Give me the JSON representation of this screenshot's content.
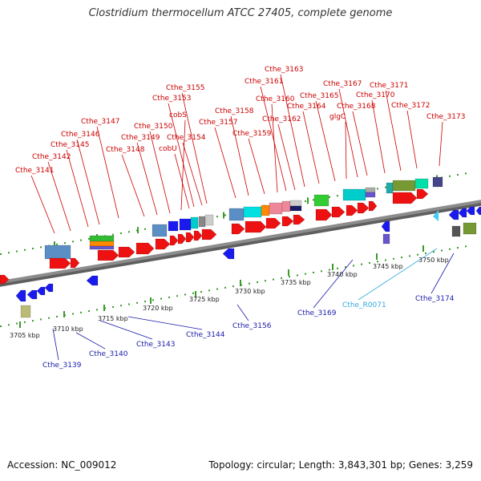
{
  "title": "Clostridium thermocellum ATCC 27405, complete genome",
  "footer": {
    "accession": "Accession: NC_009012",
    "info": "Topology: circular; Length: 3,843,301 bp; Genes: 3,259"
  },
  "colors": {
    "top_label": "#cc0000",
    "bottom_label": "#1a1aaa",
    "rna_label": "#33aadd",
    "backbone": "#8c8c8c",
    "ticks": "#3a9a2a",
    "forward_gene": "#ee1111",
    "reverse_gene": "#1a1aee"
  },
  "ticks": [
    {
      "label": "3705 kbp"
    },
    {
      "label": "3710 kbp"
    },
    {
      "label": "3715 kbp"
    },
    {
      "label": "3720 kbp"
    },
    {
      "label": "3725 kbp"
    },
    {
      "label": "3730 kbp"
    },
    {
      "label": "3735 kbp"
    },
    {
      "label": "3740 kbp"
    },
    {
      "label": "3745 kbp"
    },
    {
      "label": "3750 kbp"
    }
  ],
  "top_labels": [
    {
      "text": "Cthe_3141"
    },
    {
      "text": "Cthe_3142"
    },
    {
      "text": "Cthe_3145"
    },
    {
      "text": "Cthe_3146"
    },
    {
      "text": "Cthe_3147"
    },
    {
      "text": "Cthe_3148"
    },
    {
      "text": "Cthe_3149"
    },
    {
      "text": "Cthe_3150"
    },
    {
      "text": "cobS"
    },
    {
      "text": "cobU"
    },
    {
      "text": "Cthe_3153"
    },
    {
      "text": "Cthe_3154"
    },
    {
      "text": "Cthe_3155"
    },
    {
      "text": "Cthe_3157"
    },
    {
      "text": "Cthe_3158"
    },
    {
      "text": "Cthe_3159"
    },
    {
      "text": "Cthe_3160"
    },
    {
      "text": "Cthe_3161"
    },
    {
      "text": "Cthe_3162"
    },
    {
      "text": "Cthe_3163"
    },
    {
      "text": "Cthe_3164"
    },
    {
      "text": "Cthe_3165"
    },
    {
      "text": "glgC"
    },
    {
      "text": "Cthe_3167"
    },
    {
      "text": "Cthe_3168"
    },
    {
      "text": "Cthe_3170"
    },
    {
      "text": "Cthe_3171"
    },
    {
      "text": "Cthe_3172"
    },
    {
      "text": "Cthe_3173"
    }
  ],
  "bottom_labels": [
    {
      "text": "Cthe_3139",
      "kind": "gene"
    },
    {
      "text": "Cthe_3140",
      "kind": "gene"
    },
    {
      "text": "Cthe_3143",
      "kind": "gene"
    },
    {
      "text": "Cthe_3144",
      "kind": "gene"
    },
    {
      "text": "Cthe_3156",
      "kind": "gene"
    },
    {
      "text": "Cthe_3169",
      "kind": "gene"
    },
    {
      "text": "Cthe_R0071",
      "kind": "rna"
    },
    {
      "text": "Cthe_3174",
      "kind": "gene"
    }
  ]
}
